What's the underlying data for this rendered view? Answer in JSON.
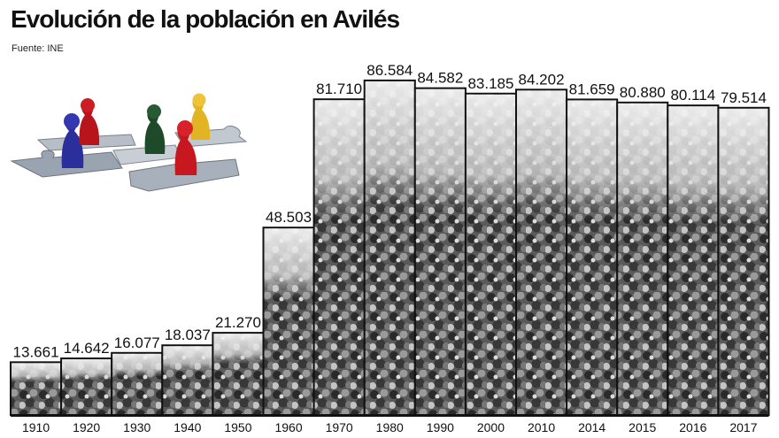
{
  "header": {
    "title": "Evolución de la población en Avilés",
    "source": "Fuente: INE"
  },
  "illustration": {
    "icon": "puzzle-game-pieces-icon",
    "colors": [
      "#2a2f9c",
      "#b8141c",
      "#1f4a2a",
      "#e2b424",
      "#c8181f"
    ]
  },
  "chart_data": {
    "type": "bar",
    "title": "Evolución de la población en Avilés",
    "xlabel": "",
    "ylabel": "",
    "ylim": [
      0,
      90000
    ],
    "grid": false,
    "categories": [
      "1910",
      "1920",
      "1930",
      "1940",
      "1950",
      "1960",
      "1970",
      "1980",
      "1990",
      "2000",
      "2010",
      "2014",
      "2015",
      "2016",
      "2017"
    ],
    "labels": [
      "13.661",
      "14.642",
      "16.077",
      "18.037",
      "21.270",
      "48.503",
      "81.710",
      "86.584",
      "84.582",
      "83.185",
      "84.202",
      "81.659",
      "80.880",
      "80.114",
      "79.514"
    ],
    "values": [
      13661,
      14642,
      16077,
      18037,
      21270,
      48503,
      81710,
      86584,
      84582,
      83185,
      84202,
      81659,
      80880,
      80114,
      79514
    ]
  }
}
